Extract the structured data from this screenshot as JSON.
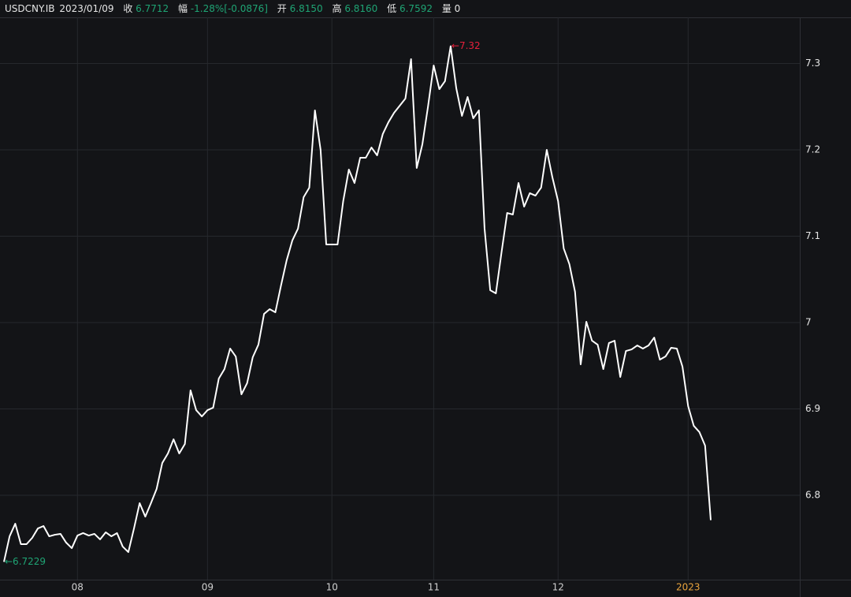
{
  "header": {
    "symbol": "USDCNY.IB",
    "date": "2023/01/09",
    "close_label": "收",
    "close": "6.7712",
    "change_label": "幅",
    "change": "-1.28%[-0.0876]",
    "open_label": "开",
    "open": "6.8150",
    "high_label": "高",
    "high": "6.8160",
    "low_label": "低",
    "low": "6.7592",
    "volume_label": "量",
    "volume": "0"
  },
  "chart_data": {
    "type": "line",
    "color": "#ffffff",
    "year_label_color": "#e8a33d",
    "grid": true,
    "categories": [
      null,
      null,
      null,
      null,
      null,
      null,
      null,
      null,
      null,
      null,
      null,
      null,
      null,
      "08",
      null,
      null,
      null,
      null,
      null,
      null,
      null,
      null,
      null,
      null,
      null,
      null,
      null,
      null,
      null,
      null,
      null,
      null,
      null,
      null,
      null,
      null,
      "09",
      null,
      null,
      null,
      null,
      null,
      null,
      null,
      null,
      null,
      null,
      null,
      null,
      null,
      null,
      null,
      null,
      null,
      null,
      null,
      null,
      null,
      "10",
      null,
      null,
      null,
      null,
      null,
      null,
      null,
      null,
      null,
      null,
      null,
      null,
      null,
      null,
      null,
      null,
      null,
      "11",
      null,
      null,
      null,
      null,
      null,
      null,
      null,
      null,
      null,
      null,
      null,
      null,
      null,
      null,
      null,
      null,
      null,
      null,
      null,
      null,
      null,
      "12",
      null,
      null,
      null,
      null,
      null,
      null,
      null,
      null,
      null,
      null,
      null,
      null,
      null,
      null,
      null,
      null,
      null,
      null,
      null,
      null,
      null,
      null,
      "2023",
      null,
      null,
      null,
      null
    ],
    "values": [
      6.7229,
      6.7525,
      6.7671,
      6.7434,
      6.7434,
      6.7507,
      6.7616,
      6.7644,
      6.7525,
      6.7543,
      6.7553,
      6.7452,
      6.7388,
      6.7534,
      6.7562,
      6.7534,
      6.7553,
      6.7489,
      6.7571,
      6.7525,
      6.7562,
      6.7406,
      6.7342,
      6.7616,
      6.7909,
      6.7753,
      6.7909,
      6.8073,
      6.8374,
      6.8484,
      6.8648,
      6.8484,
      6.8594,
      6.9215,
      6.8986,
      6.8913,
      6.8986,
      6.9014,
      6.9352,
      6.9461,
      6.9699,
      6.9607,
      6.9169,
      6.9297,
      6.9598,
      6.9744,
      7.01,
      7.0155,
      7.0119,
      7.0429,
      7.0721,
      7.095,
      7.1087,
      7.1452,
      7.1562,
      7.2457,
      7.2,
      7.0904,
      7.0904,
      7.0904,
      7.1406,
      7.1772,
      7.1616,
      7.1909,
      7.1909,
      7.2027,
      7.1936,
      7.2183,
      7.232,
      7.2429,
      7.2511,
      7.2594,
      7.305,
      7.179,
      7.2064,
      7.2502,
      7.2977,
      7.2703,
      7.2795,
      7.32,
      7.2712,
      7.2393,
      7.2612,
      7.2365,
      7.2457,
      7.1087,
      7.0374,
      7.0338,
      7.0813,
      7.1269,
      7.1251,
      7.1616,
      7.1342,
      7.1498,
      7.147,
      7.1562,
      7.2,
      7.168,
      7.1406,
      7.0858,
      7.0676,
      7.0356,
      6.9516,
      7.0009,
      6.979,
      6.9744,
      6.9461,
      6.9763,
      6.979,
      6.937,
      6.9671,
      6.9689,
      6.9735,
      6.9699,
      6.9735,
      6.9826,
      6.9571,
      6.9607,
      6.9708,
      6.9699,
      6.9489,
      6.9032,
      6.8804,
      6.8731,
      6.8575,
      6.7712
    ],
    "ylim": [
      6.7023,
      7.3534
    ],
    "yticks": [
      6.8,
      6.9,
      7,
      7.1,
      7.2,
      7.3
    ],
    "annotations": [
      {
        "text": "←7.32",
        "value": 7.32,
        "color": "#e8203c"
      },
      {
        "text": "←6.7229",
        "value": 6.7229,
        "color": "#1fa474"
      }
    ]
  }
}
